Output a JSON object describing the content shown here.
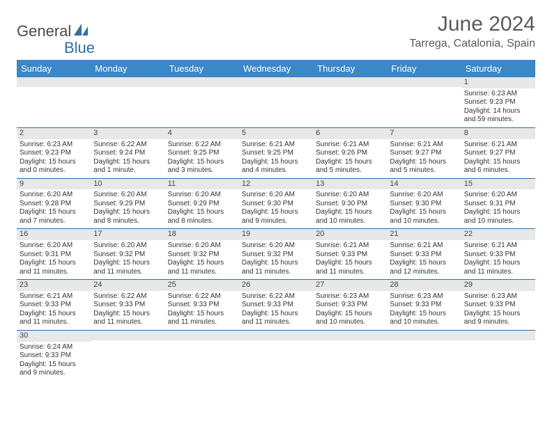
{
  "logo": {
    "text1": "General",
    "text2": "Blue"
  },
  "title": "June 2024",
  "location": "Tarrega, Catalonia, Spain",
  "colors": {
    "header_bg": "#3b87c8",
    "header_text": "#ffffff",
    "row_border": "#2f6fa8",
    "daynum_bg": "#e8e8e8",
    "logo_blue": "#2f6fa8",
    "logo_gray": "#4a4a4a"
  },
  "day_headers": [
    "Sunday",
    "Monday",
    "Tuesday",
    "Wednesday",
    "Thursday",
    "Friday",
    "Saturday"
  ],
  "weeks": [
    [
      null,
      null,
      null,
      null,
      null,
      null,
      {
        "n": "1",
        "sunrise": "Sunrise: 6:23 AM",
        "sunset": "Sunset: 9:23 PM",
        "daylight": "Daylight: 14 hours and 59 minutes."
      }
    ],
    [
      {
        "n": "2",
        "sunrise": "Sunrise: 6:23 AM",
        "sunset": "Sunset: 9:23 PM",
        "daylight": "Daylight: 15 hours and 0 minutes."
      },
      {
        "n": "3",
        "sunrise": "Sunrise: 6:22 AM",
        "sunset": "Sunset: 9:24 PM",
        "daylight": "Daylight: 15 hours and 1 minute."
      },
      {
        "n": "4",
        "sunrise": "Sunrise: 6:22 AM",
        "sunset": "Sunset: 9:25 PM",
        "daylight": "Daylight: 15 hours and 3 minutes."
      },
      {
        "n": "5",
        "sunrise": "Sunrise: 6:21 AM",
        "sunset": "Sunset: 9:25 PM",
        "daylight": "Daylight: 15 hours and 4 minutes."
      },
      {
        "n": "6",
        "sunrise": "Sunrise: 6:21 AM",
        "sunset": "Sunset: 9:26 PM",
        "daylight": "Daylight: 15 hours and 5 minutes."
      },
      {
        "n": "7",
        "sunrise": "Sunrise: 6:21 AM",
        "sunset": "Sunset: 9:27 PM",
        "daylight": "Daylight: 15 hours and 5 minutes."
      },
      {
        "n": "8",
        "sunrise": "Sunrise: 6:21 AM",
        "sunset": "Sunset: 9:27 PM",
        "daylight": "Daylight: 15 hours and 6 minutes."
      }
    ],
    [
      {
        "n": "9",
        "sunrise": "Sunrise: 6:20 AM",
        "sunset": "Sunset: 9:28 PM",
        "daylight": "Daylight: 15 hours and 7 minutes."
      },
      {
        "n": "10",
        "sunrise": "Sunrise: 6:20 AM",
        "sunset": "Sunset: 9:29 PM",
        "daylight": "Daylight: 15 hours and 8 minutes."
      },
      {
        "n": "11",
        "sunrise": "Sunrise: 6:20 AM",
        "sunset": "Sunset: 9:29 PM",
        "daylight": "Daylight: 15 hours and 8 minutes."
      },
      {
        "n": "12",
        "sunrise": "Sunrise: 6:20 AM",
        "sunset": "Sunset: 9:30 PM",
        "daylight": "Daylight: 15 hours and 9 minutes."
      },
      {
        "n": "13",
        "sunrise": "Sunrise: 6:20 AM",
        "sunset": "Sunset: 9:30 PM",
        "daylight": "Daylight: 15 hours and 10 minutes."
      },
      {
        "n": "14",
        "sunrise": "Sunrise: 6:20 AM",
        "sunset": "Sunset: 9:30 PM",
        "daylight": "Daylight: 15 hours and 10 minutes."
      },
      {
        "n": "15",
        "sunrise": "Sunrise: 6:20 AM",
        "sunset": "Sunset: 9:31 PM",
        "daylight": "Daylight: 15 hours and 10 minutes."
      }
    ],
    [
      {
        "n": "16",
        "sunrise": "Sunrise: 6:20 AM",
        "sunset": "Sunset: 9:31 PM",
        "daylight": "Daylight: 15 hours and 11 minutes."
      },
      {
        "n": "17",
        "sunrise": "Sunrise: 6:20 AM",
        "sunset": "Sunset: 9:32 PM",
        "daylight": "Daylight: 15 hours and 11 minutes."
      },
      {
        "n": "18",
        "sunrise": "Sunrise: 6:20 AM",
        "sunset": "Sunset: 9:32 PM",
        "daylight": "Daylight: 15 hours and 11 minutes."
      },
      {
        "n": "19",
        "sunrise": "Sunrise: 6:20 AM",
        "sunset": "Sunset: 9:32 PM",
        "daylight": "Daylight: 15 hours and 11 minutes."
      },
      {
        "n": "20",
        "sunrise": "Sunrise: 6:21 AM",
        "sunset": "Sunset: 9:33 PM",
        "daylight": "Daylight: 15 hours and 11 minutes."
      },
      {
        "n": "21",
        "sunrise": "Sunrise: 6:21 AM",
        "sunset": "Sunset: 9:33 PM",
        "daylight": "Daylight: 15 hours and 12 minutes."
      },
      {
        "n": "22",
        "sunrise": "Sunrise: 6:21 AM",
        "sunset": "Sunset: 9:33 PM",
        "daylight": "Daylight: 15 hours and 11 minutes."
      }
    ],
    [
      {
        "n": "23",
        "sunrise": "Sunrise: 6:21 AM",
        "sunset": "Sunset: 9:33 PM",
        "daylight": "Daylight: 15 hours and 11 minutes."
      },
      {
        "n": "24",
        "sunrise": "Sunrise: 6:22 AM",
        "sunset": "Sunset: 9:33 PM",
        "daylight": "Daylight: 15 hours and 11 minutes."
      },
      {
        "n": "25",
        "sunrise": "Sunrise: 6:22 AM",
        "sunset": "Sunset: 9:33 PM",
        "daylight": "Daylight: 15 hours and 11 minutes."
      },
      {
        "n": "26",
        "sunrise": "Sunrise: 6:22 AM",
        "sunset": "Sunset: 9:33 PM",
        "daylight": "Daylight: 15 hours and 11 minutes."
      },
      {
        "n": "27",
        "sunrise": "Sunrise: 6:23 AM",
        "sunset": "Sunset: 9:33 PM",
        "daylight": "Daylight: 15 hours and 10 minutes."
      },
      {
        "n": "28",
        "sunrise": "Sunrise: 6:23 AM",
        "sunset": "Sunset: 9:33 PM",
        "daylight": "Daylight: 15 hours and 10 minutes."
      },
      {
        "n": "29",
        "sunrise": "Sunrise: 6:23 AM",
        "sunset": "Sunset: 9:33 PM",
        "daylight": "Daylight: 15 hours and 9 minutes."
      }
    ],
    [
      {
        "n": "30",
        "sunrise": "Sunrise: 6:24 AM",
        "sunset": "Sunset: 9:33 PM",
        "daylight": "Daylight: 15 hours and 9 minutes."
      },
      null,
      null,
      null,
      null,
      null,
      null
    ]
  ]
}
